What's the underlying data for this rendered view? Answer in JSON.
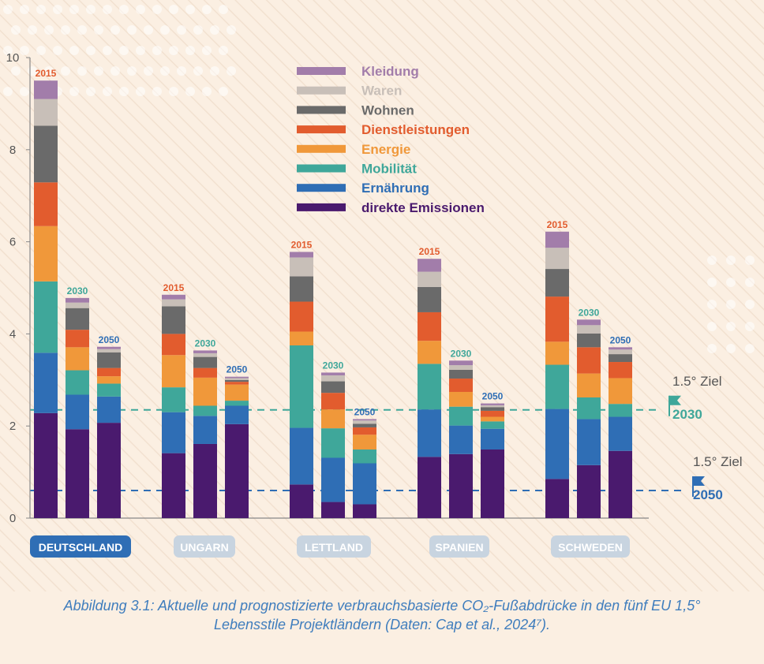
{
  "chart_data": {
    "type": "bar",
    "stacked": true,
    "ylim": [
      0,
      10
    ],
    "yticks": [
      0,
      2,
      4,
      6,
      8,
      10
    ],
    "grid": false,
    "legend_position": "top-center",
    "categories": [
      "DEUTSCHLAND",
      "UNGARN",
      "LETTLAND",
      "SPANIEN",
      "SCHWEDEN"
    ],
    "active_category": "DEUTSCHLAND",
    "years": [
      "2015",
      "2030",
      "2050"
    ],
    "series": [
      {
        "name": "direkte Emissionen",
        "color": "#4a1a6e",
        "values": [
          [
            2.28,
            1.93,
            2.07
          ],
          [
            1.41,
            1.61,
            2.04
          ],
          [
            0.73,
            0.35,
            0.3
          ],
          [
            1.33,
            1.39,
            1.49
          ],
          [
            0.85,
            1.15,
            1.46
          ]
        ]
      },
      {
        "name": "Ernährung",
        "color": "#2f6eb5",
        "values": [
          [
            1.31,
            0.75,
            0.57
          ],
          [
            0.89,
            0.61,
            0.4
          ],
          [
            1.23,
            0.96,
            0.89
          ],
          [
            1.03,
            0.62,
            0.45
          ],
          [
            1.52,
            1.0,
            0.74
          ]
        ]
      },
      {
        "name": "Mobilität",
        "color": "#3fa79a",
        "values": [
          [
            1.55,
            0.53,
            0.28
          ],
          [
            0.54,
            0.22,
            0.11
          ],
          [
            1.79,
            0.64,
            0.3
          ],
          [
            0.99,
            0.41,
            0.16
          ],
          [
            0.96,
            0.47,
            0.28
          ]
        ]
      },
      {
        "name": "Energie",
        "color": "#f0983a",
        "values": [
          [
            1.2,
            0.5,
            0.16
          ],
          [
            0.7,
            0.61,
            0.35
          ],
          [
            0.3,
            0.41,
            0.32
          ],
          [
            0.5,
            0.32,
            0.1
          ],
          [
            0.5,
            0.52,
            0.56
          ]
        ]
      },
      {
        "name": "Dienstleistungen",
        "color": "#e25c2e",
        "values": [
          [
            0.95,
            0.38,
            0.18
          ],
          [
            0.46,
            0.21,
            0.06
          ],
          [
            0.65,
            0.36,
            0.16
          ],
          [
            0.62,
            0.29,
            0.13
          ],
          [
            0.98,
            0.57,
            0.35
          ]
        ]
      },
      {
        "name": "Wohnen",
        "color": "#6a6a6a",
        "values": [
          [
            1.23,
            0.47,
            0.34
          ],
          [
            0.6,
            0.24,
            0.04
          ],
          [
            0.55,
            0.25,
            0.08
          ],
          [
            0.55,
            0.19,
            0.08
          ],
          [
            0.6,
            0.3,
            0.17
          ]
        ]
      },
      {
        "name": "Waren",
        "color": "#c8bfb8",
        "values": [
          [
            0.58,
            0.12,
            0.07
          ],
          [
            0.15,
            0.08,
            0.04
          ],
          [
            0.41,
            0.13,
            0.07
          ],
          [
            0.33,
            0.1,
            0.04
          ],
          [
            0.46,
            0.18,
            0.1
          ]
        ]
      },
      {
        "name": "Kleidung",
        "color": "#a27daa",
        "values": [
          [
            0.4,
            0.1,
            0.05
          ],
          [
            0.1,
            0.06,
            0.03
          ],
          [
            0.12,
            0.06,
            0.03
          ],
          [
            0.28,
            0.1,
            0.04
          ],
          [
            0.35,
            0.12,
            0.05
          ]
        ]
      }
    ],
    "reference_lines": [
      {
        "label": "1.5° Ziel",
        "year": "2030",
        "value": 2.35,
        "color": "#3fa79a"
      },
      {
        "label": "1.5° Ziel",
        "year": "2050",
        "value": 0.6,
        "color": "#2f6eb5"
      }
    ]
  },
  "colors": {
    "year_2015": "#e25c2e",
    "year_2030": "#3fa79a",
    "year_2050": "#2f6eb5",
    "axis": "#888888",
    "tick_text": "#555555",
    "pill_active": "#2f6eb5",
    "pill_inactive": "#c8d4e0",
    "caption": "#3f7dbd",
    "background": "#fbefe2"
  },
  "caption": {
    "line1": "Abbildung 3.1: Aktuelle und prognostizierte verbrauchsbasierte CO₂-Fußabdrücke in den fünf EU 1,5°",
    "line2": "Lebensstile Projektländern (Daten: Cap et al., 2024⁷)."
  }
}
